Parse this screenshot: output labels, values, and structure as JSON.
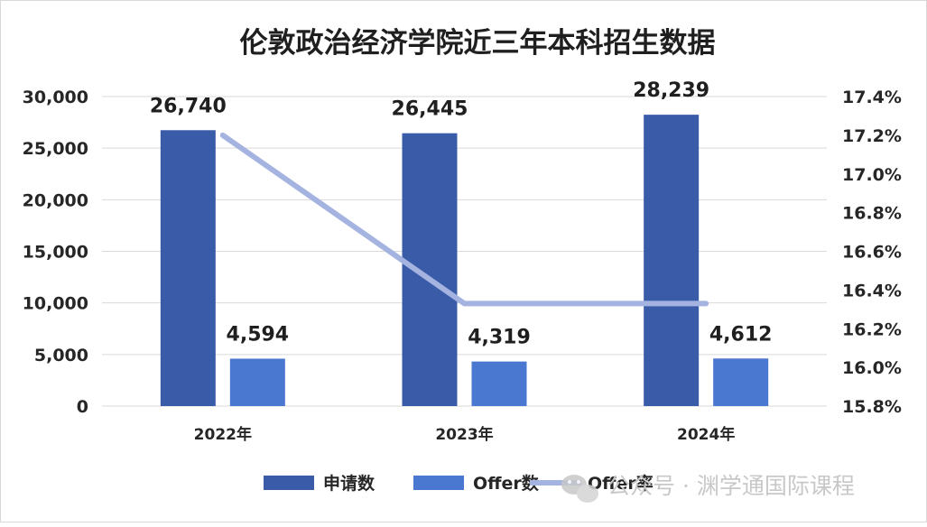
{
  "chart_data": {
    "type": "bar",
    "title": "伦敦政治经济学院近三年本科招生数据",
    "categories": [
      "2022年",
      "2023年",
      "2024年"
    ],
    "series": [
      {
        "name": "申请数",
        "type": "bar",
        "axis": "left",
        "color": "#3a5ba8",
        "values": [
          26740,
          26445,
          28239
        ],
        "labels": [
          "26,740",
          "26,445",
          "28,239"
        ]
      },
      {
        "name": "Offer数",
        "type": "bar",
        "axis": "left",
        "color": "#4a78d0",
        "values": [
          4594,
          4319,
          4612
        ],
        "labels": [
          "4,594",
          "4,319",
          "4,612"
        ]
      },
      {
        "name": "Offer率",
        "type": "line",
        "axis": "right",
        "color": "#a5b3e0",
        "values": [
          17.2,
          16.33,
          16.33
        ]
      }
    ],
    "left_axis": {
      "min": 0,
      "max": 30000,
      "step": 5000,
      "tick_labels": [
        "0",
        "5,000",
        "10,000",
        "15,000",
        "20,000",
        "25,000",
        "30,000"
      ]
    },
    "right_axis": {
      "min": 15.8,
      "max": 17.4,
      "step": 0.2,
      "tick_labels": [
        "15.8%",
        "16.0%",
        "16.2%",
        "16.4%",
        "16.6%",
        "16.8%",
        "17.0%",
        "17.2%",
        "17.4%"
      ]
    },
    "grid": true,
    "legend_position": "bottom"
  },
  "watermark": {
    "text": "公众号 · 渊学通国际课程"
  }
}
